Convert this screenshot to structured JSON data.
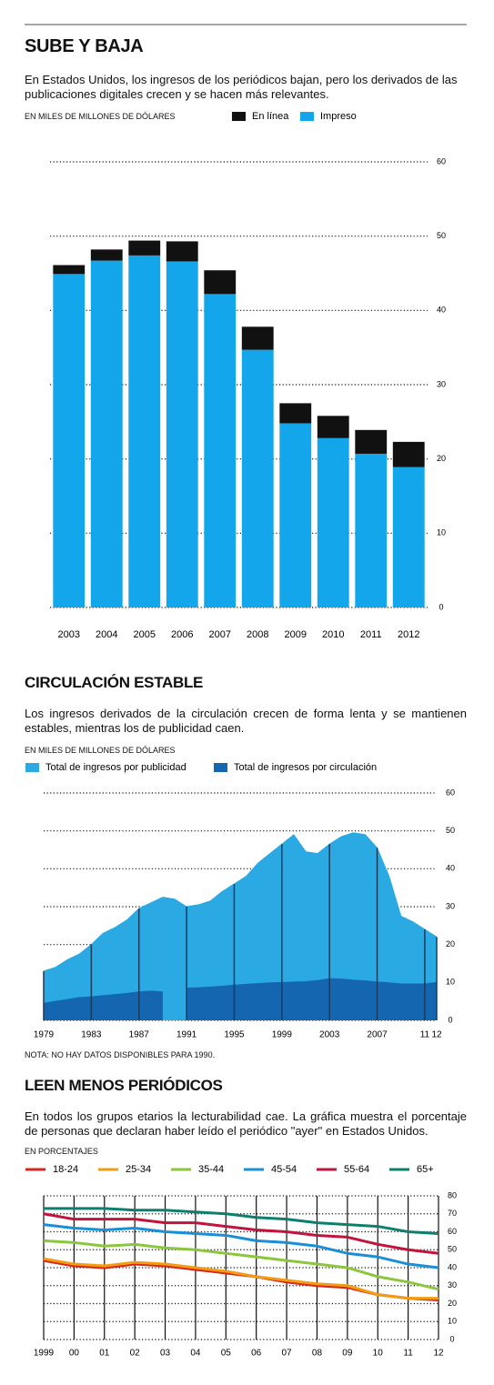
{
  "chart_data": [
    {
      "type": "bar",
      "title": "SUBE Y BAJA",
      "subtitle": "En Estados Unidos, los ingresos de los periódicos bajan, pero los derivados de las publicaciones digitales crecen y se hacen más relevantes.",
      "y_label": "EN MILES DE MILLONES DE DÓLARES",
      "categories": [
        "2003",
        "2004",
        "2005",
        "2006",
        "2007",
        "2008",
        "2009",
        "2010",
        "2011",
        "2012"
      ],
      "series": [
        {
          "name": "En línea",
          "color": "#111111",
          "values": [
            1.2,
            1.5,
            2.0,
            2.7,
            3.2,
            3.1,
            2.7,
            3.0,
            3.2,
            3.4
          ]
        },
        {
          "name": "Impreso",
          "color": "#14a6ea",
          "values": [
            44.9,
            46.7,
            47.4,
            46.6,
            42.2,
            34.7,
            24.8,
            22.8,
            20.7,
            18.9
          ]
        }
      ],
      "ylim": [
        0,
        60
      ],
      "yticks": [
        0,
        10,
        20,
        30,
        40,
        50,
        60
      ],
      "grid": true
    },
    {
      "type": "area",
      "title": "CIRCULACIÓN ESTABLE",
      "subtitle": "Los ingresos derivados de la circulación crecen de forma lenta y se mantienen estables, mientras los de publicidad caen.",
      "y_label": "EN MILES DE MILLONES DE DÓLARES",
      "note": "NOTA: NO HAY DATOS DISPONIBLES PARA 1990.",
      "x": [
        1979,
        1980,
        1981,
        1982,
        1983,
        1984,
        1985,
        1986,
        1987,
        1988,
        1989,
        1990,
        1991,
        1992,
        1993,
        1994,
        1995,
        1996,
        1997,
        1998,
        1999,
        2000,
        2001,
        2002,
        2003,
        2004,
        2005,
        2006,
        2007,
        2008,
        2009,
        2010,
        2011,
        2012
      ],
      "series": [
        {
          "name": "Total de ingresos por publicidad",
          "color": "#2aa9e2",
          "values": [
            13,
            14,
            16,
            17.5,
            20,
            23,
            24.5,
            26.5,
            29.5,
            31,
            32.5,
            32,
            30,
            30.5,
            31.5,
            34,
            36,
            38,
            41.5,
            44,
            46.5,
            49,
            44.5,
            44,
            46.5,
            48.5,
            49.5,
            49,
            45.5,
            38,
            27.5,
            26,
            24,
            22
          ]
        },
        {
          "name": "Total de ingresos por circulación",
          "color": "#1566b0",
          "values": [
            4.5,
            5,
            5.5,
            6,
            6.2,
            6.5,
            6.8,
            7.1,
            7.5,
            7.7,
            7.5,
            null,
            8.5,
            8.6,
            8.8,
            9,
            9.3,
            9.5,
            9.7,
            9.9,
            10,
            10.1,
            10.2,
            10.5,
            11,
            10.9,
            10.6,
            10.4,
            10.1,
            9.9,
            9.6,
            9.6,
            9.6,
            10
          ]
        }
      ],
      "xlim": [
        1979,
        2012
      ],
      "xticks": [
        1979,
        1983,
        1987,
        1991,
        1995,
        1999,
        2003,
        2007,
        {
          "value": 2011,
          "label": "11"
        },
        {
          "value": 2012,
          "label": "12"
        }
      ],
      "ylim": [
        0,
        60
      ],
      "yticks": [
        0,
        10,
        20,
        30,
        40,
        50,
        60
      ],
      "grid": true
    },
    {
      "type": "line",
      "title": "LEEN MENOS PERIÓDICOS",
      "subtitle": "En todos los grupos etarios la lecturabilidad cae. La gráfica muestra el porcentaje de personas que declaran haber leído el periódico \"ayer\" en Estados Unidos.",
      "y_label": "EN PORCENTAJES",
      "x": [
        1999,
        2000,
        2001,
        2002,
        2003,
        2004,
        2005,
        2006,
        2007,
        2008,
        2009,
        2010,
        2011,
        2012
      ],
      "series": [
        {
          "name": "18-24",
          "color": "#d7261e",
          "values": [
            44,
            41,
            40,
            42,
            41,
            39,
            37,
            35,
            32,
            30,
            29,
            25,
            23,
            22
          ]
        },
        {
          "name": "25-34",
          "color": "#f39c12",
          "values": [
            45,
            42,
            41,
            43,
            42,
            40,
            38,
            35,
            33,
            31,
            30,
            25,
            23,
            23
          ]
        },
        {
          "name": "35-44",
          "color": "#8cc63f",
          "values": [
            55,
            54,
            52,
            53,
            51,
            50,
            48,
            46,
            44,
            42,
            40,
            35,
            32,
            28
          ]
        },
        {
          "name": "45-54",
          "color": "#1a8fd8",
          "values": [
            64,
            62,
            61,
            62,
            60,
            59,
            58,
            55,
            54,
            52,
            48,
            46,
            42,
            40
          ]
        },
        {
          "name": "55-64",
          "color": "#c0143c",
          "values": [
            70,
            67,
            67,
            67,
            65,
            65,
            63,
            61,
            60,
            58,
            57,
            53,
            50,
            48
          ]
        },
        {
          "name": "65+",
          "color": "#0e7f6e",
          "values": [
            73,
            73,
            73,
            72,
            72,
            71,
            70,
            68,
            67,
            65,
            64,
            63,
            60,
            59
          ]
        }
      ],
      "xlim": [
        1999,
        2012
      ],
      "xticks": [
        1999,
        {
          "value": 2000,
          "label": "00"
        },
        {
          "value": 2001,
          "label": "01"
        },
        {
          "value": 2002,
          "label": "02"
        },
        {
          "value": 2003,
          "label": "03"
        },
        {
          "value": 2004,
          "label": "04"
        },
        {
          "value": 2005,
          "label": "05"
        },
        {
          "value": 2006,
          "label": "06"
        },
        {
          "value": 2007,
          "label": "07"
        },
        {
          "value": 2008,
          "label": "08"
        },
        {
          "value": 2009,
          "label": "09"
        },
        {
          "value": 2010,
          "label": "10"
        },
        {
          "value": 2011,
          "label": "11"
        },
        {
          "value": 2012,
          "label": "12"
        }
      ],
      "ylim": [
        0,
        80
      ],
      "yticks": [
        0,
        10,
        20,
        30,
        40,
        50,
        60,
        70,
        80
      ],
      "grid": true
    }
  ]
}
